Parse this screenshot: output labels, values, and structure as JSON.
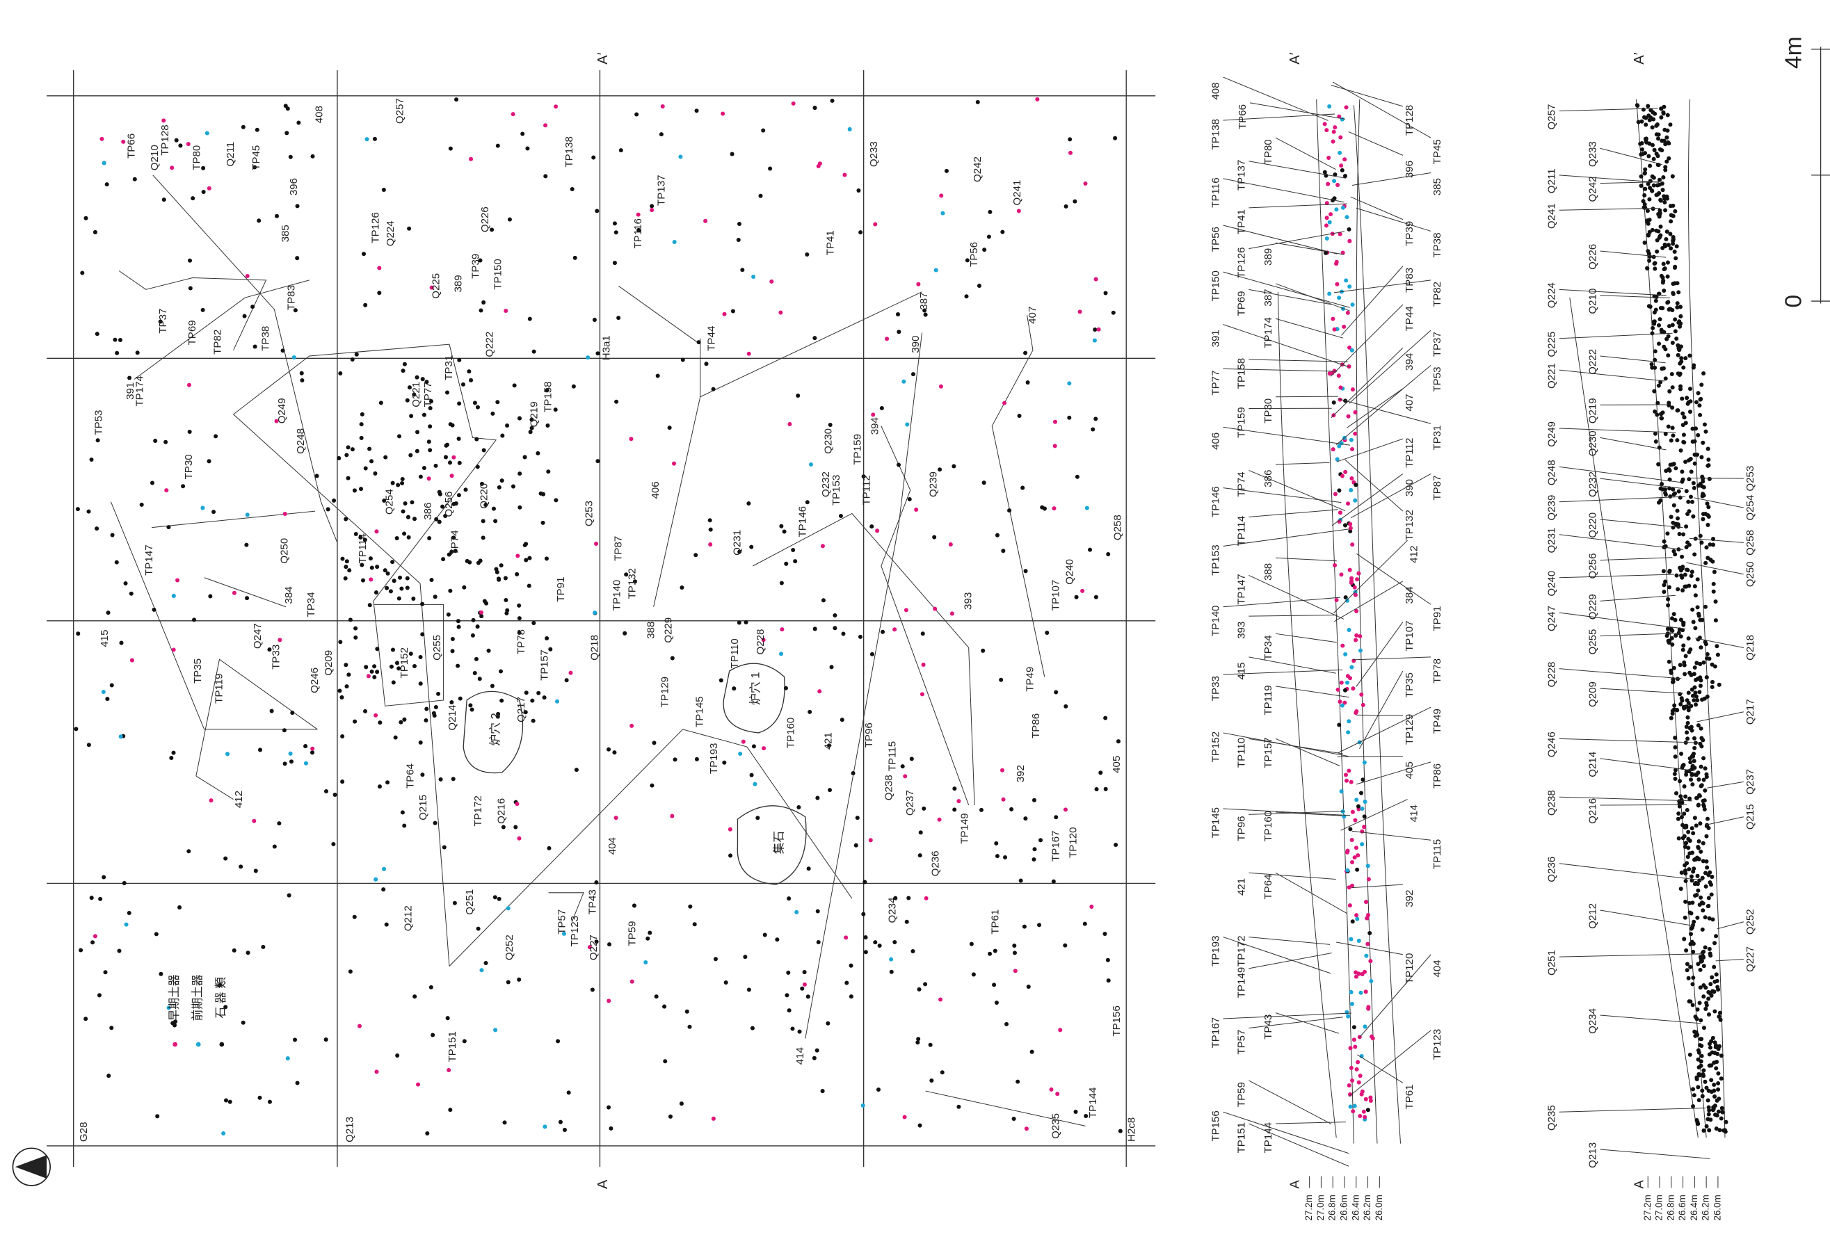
{
  "plan": {
    "section_marks": [
      "A′",
      "A"
    ],
    "grid_labels": [
      "G28",
      "Q213",
      "H2c8",
      "H3a1"
    ],
    "legend": [
      "早期土器",
      "前期土器",
      "石 器 類"
    ],
    "features": [
      "炉穴 2",
      "炉穴 1",
      "集石"
    ],
    "labels": [
      "TP66",
      "Q210",
      "TP128",
      "TP80",
      "Q211",
      "TP45",
      "396",
      "408",
      "385",
      "Q257",
      "TP138",
      "TP137",
      "TP116",
      "TP41",
      "Q233",
      "Q242",
      "Q241",
      "TP56",
      "TP126",
      "Q224",
      "Q226",
      "Q225",
      "389",
      "TP39",
      "TP150",
      "TP37",
      "TP69",
      "TP82",
      "TP38",
      "TP83",
      "391",
      "TP174",
      "TP53",
      "TP44",
      "387",
      "407",
      "390",
      "Q222",
      "TP31",
      "Q221",
      "TP77",
      "Q219",
      "TP158",
      "Q249",
      "Q248",
      "TP30",
      "Q230",
      "TP159",
      "394",
      "Q232",
      "TP153",
      "TP112",
      "Q239",
      "406",
      "Q254",
      "386",
      "Q256",
      "Q220",
      "TP114",
      "TP74",
      "Q253",
      "TP87",
      "TP146",
      "Q231",
      "Q258",
      "TP147",
      "Q250",
      "384",
      "TP34",
      "TP91",
      "TP140",
      "TP132",
      "388",
      "Q229",
      "393",
      "TP107",
      "Q240",
      "415",
      "TP35",
      "TP119",
      "Q247",
      "TP33",
      "Q246",
      "Q209",
      "TP152",
      "Q255",
      "TP78",
      "TP157",
      "Q218",
      "TP110",
      "Q228",
      "TP129",
      "TP145",
      "TP193",
      "TP160",
      "421",
      "TP96",
      "TP115",
      "TP49",
      "TP86",
      "Q214",
      "Q217",
      "412",
      "TP64",
      "Q215",
      "TP172",
      "Q216",
      "Q238",
      "Q237",
      "392",
      "405",
      "TP149",
      "TP167",
      "TP120",
      "404",
      "Q236",
      "Q212",
      "Q251",
      "Q252",
      "TP57",
      "TP123",
      "TP43",
      "Q227",
      "TP59",
      "Q234",
      "TP61",
      "TP151",
      "414",
      "TP156",
      "TP144",
      "Q235"
    ]
  },
  "profile_1": {
    "section_mark": "A′",
    "base_mark": "A",
    "left_labels": [
      "408",
      "TP138",
      "TP66",
      "TP80",
      "TP137",
      "TP116",
      "TP41",
      "TP56",
      "TP126",
      "389",
      "TP150",
      "TP69",
      "387",
      "TP174",
      "391",
      "TP77",
      "TP158",
      "TP159",
      "TP30",
      "406",
      "TP74",
      "386",
      "TP146",
      "TP114",
      "TP153",
      "388",
      "TP147",
      "TP140",
      "393",
      "TP34",
      "415",
      "TP33",
      "TP119",
      "TP152",
      "TP110",
      "TP157",
      "TP145",
      "TP96",
      "TP160",
      "421",
      "TP64",
      "TP193",
      "TP172",
      "TP149",
      "TP167",
      "TP57",
      "TP43",
      "TP59",
      "TP156",
      "TP151",
      "TP144"
    ],
    "right_labels": [
      "TP128",
      "TP45",
      "396",
      "385",
      "TP39",
      "TP38",
      "TP83",
      "TP82",
      "TP44",
      "TP37",
      "394",
      "TP53",
      "407",
      "TP31",
      "TP112",
      "390",
      "TP87",
      "TP132",
      "412",
      "384",
      "TP91",
      "TP107",
      "TP35",
      "TP78",
      "TP49",
      "TP129",
      "405",
      "TP86",
      "414",
      "TP115",
      "392",
      "TP120",
      "404",
      "TP123",
      "TP61"
    ],
    "elevations": [
      "27.2m",
      "27.0m",
      "26.8m",
      "26.6m",
      "26.4m",
      "26.2m",
      "26.0m"
    ]
  },
  "profile_2": {
    "section_mark": "A′",
    "base_mark": "A",
    "left_labels": [
      "Q257",
      "Q211",
      "Q233",
      "Q242",
      "Q241",
      "Q226",
      "Q224",
      "Q210",
      "Q225",
      "Q222",
      "Q221",
      "Q219",
      "Q249",
      "Q230",
      "Q248",
      "Q232",
      "Q239",
      "Q220",
      "Q231",
      "Q256",
      "Q240",
      "Q229",
      "Q247",
      "Q255",
      "Q228",
      "Q209",
      "Q246",
      "Q214",
      "Q238",
      "Q216",
      "Q236",
      "Q212",
      "Q251",
      "Q234",
      "Q235",
      "Q213"
    ],
    "right_labels": [
      "Q253",
      "Q254",
      "Q258",
      "Q250",
      "Q218",
      "Q217",
      "Q237",
      "Q215",
      "Q252",
      "Q227"
    ],
    "elevations": [
      "27.2m",
      "27.0m",
      "26.8m",
      "26.6m",
      "26.4m",
      "26.2m",
      "26.0m"
    ]
  },
  "scale": {
    "zero": "0",
    "end": "4m"
  }
}
